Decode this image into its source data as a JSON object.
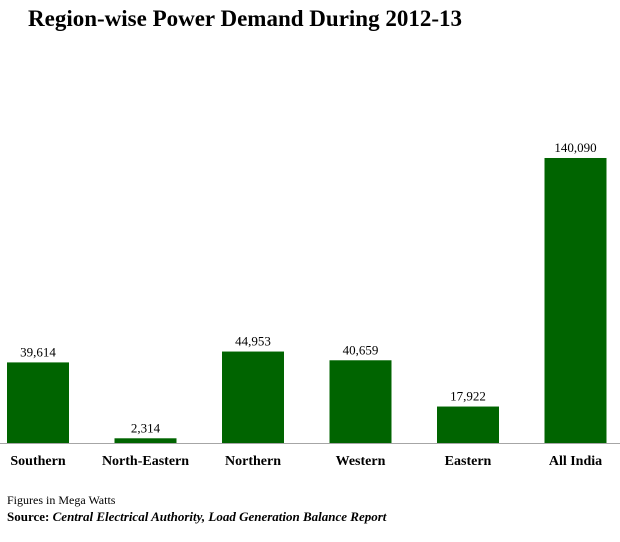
{
  "title": "Region-wise Power Demand During 2012-13",
  "footnote": "Figures in Mega Watts",
  "source_label": "Source:",
  "source_text": "Central Electrical Authority, Load Generation Balance Report",
  "colors": {
    "bar": "#006400",
    "axis": "#a6a6a6"
  },
  "chart_data": {
    "type": "bar",
    "title": "Region-wise Power Demand During 2012-13",
    "categories": [
      "Southern",
      "North-Eastern",
      "Northern",
      "Western",
      "Eastern",
      "All India"
    ],
    "values": [
      39614,
      2314,
      44953,
      40659,
      17922,
      140090
    ],
    "data_labels": [
      "39,614",
      "2,314",
      "44,953",
      "40,659",
      "17,922",
      "140,090"
    ],
    "xlabel": "",
    "ylabel": "",
    "ylim": [
      0,
      145000
    ],
    "grid": false,
    "legend": "none"
  }
}
